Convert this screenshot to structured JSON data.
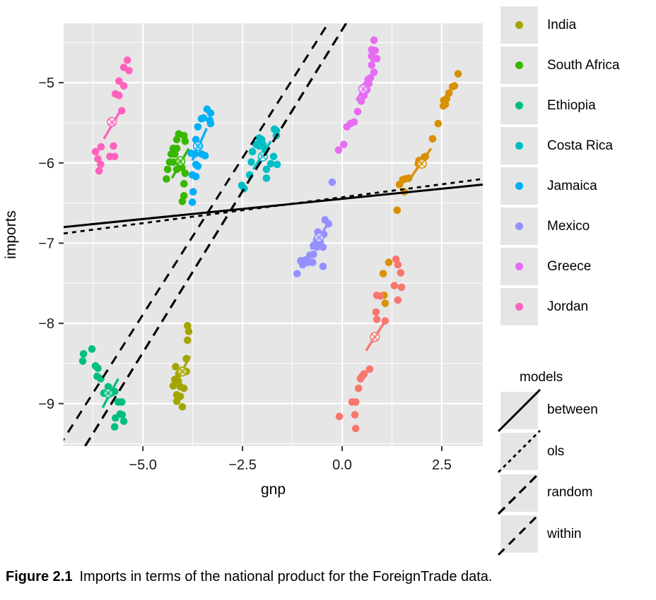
{
  "figure": {
    "caption_label": "Figure 2.1",
    "caption_text": "Imports in terms of the national product for the ForeignTrade data."
  },
  "legend_countries": {
    "items": [
      {
        "label": "India",
        "color": "#A3A500"
      },
      {
        "label": "South Africa",
        "color": "#39B600"
      },
      {
        "label": "Ethiopia",
        "color": "#00BF7D"
      },
      {
        "label": "Costa Rica",
        "color": "#00BFC4"
      },
      {
        "label": "Jamaica",
        "color": "#00B0F6"
      },
      {
        "label": "Mexico",
        "color": "#9590FF"
      },
      {
        "label": "Greece",
        "color": "#E76BF3"
      },
      {
        "label": "Jordan",
        "color": "#FF62BC"
      }
    ]
  },
  "legend_models": {
    "title": "models",
    "items": [
      {
        "label": "between",
        "dash": "none",
        "width": "3"
      },
      {
        "label": "ols",
        "dash": "5,5",
        "width": "2.8"
      },
      {
        "label": "random",
        "dash": "13,8",
        "width": "3.2"
      },
      {
        "label": "within",
        "dash": "12,9",
        "width": "3"
      }
    ]
  },
  "chart_data": {
    "type": "scatter",
    "xlabel": "gnp",
    "ylabel": "imports",
    "xlim": [
      -6.99,
      3.53
    ],
    "ylim": [
      -9.53,
      -4.26
    ],
    "x_ticks": [
      -5.0,
      -2.5,
      0.0,
      2.5
    ],
    "x_tick_labels": [
      "−5.0",
      "−2.5",
      "0.0",
      "2.5"
    ],
    "x_minor": [
      -6.25,
      -3.75,
      -1.25,
      1.25
    ],
    "y_ticks": [
      -5,
      -6,
      -7,
      -8,
      -9
    ],
    "y_tick_labels": [
      "−5",
      "−6",
      "−7",
      "−8",
      "−9"
    ],
    "y_minor": [
      -4.5,
      -5.5,
      -6.5,
      -7.5,
      -8.5,
      -9.5
    ],
    "panel_bg": "#E6E6E6",
    "grid_color": "#FFFFFF",
    "series": [
      {
        "name": "Jordan",
        "color": "#FF62BC",
        "points": [
          [
            -5.39,
            -4.72
          ],
          [
            -5.48,
            -4.81
          ],
          [
            -5.35,
            -4.85
          ],
          [
            -5.6,
            -4.98
          ],
          [
            -5.48,
            -5.04
          ],
          [
            -5.69,
            -5.14
          ],
          [
            -5.6,
            -5.16
          ],
          [
            -5.53,
            -5.35
          ],
          [
            -5.74,
            -5.79
          ],
          [
            -6.05,
            -5.8
          ],
          [
            -6.19,
            -5.86
          ],
          [
            -5.83,
            -5.92
          ],
          [
            -5.71,
            -5.92
          ],
          [
            -6.13,
            -5.95
          ],
          [
            -6.06,
            -6.02
          ],
          [
            -6.1,
            -6.1
          ]
        ],
        "fit_line": [
          [
            -5.98,
            -5.7
          ],
          [
            -5.53,
            -5.32
          ]
        ],
        "center": [
          -5.78,
          -5.49
        ]
      },
      {
        "name": "South Africa",
        "color": "#39B600",
        "points": [
          [
            -4.1,
            -5.64
          ],
          [
            -3.97,
            -5.66
          ],
          [
            -4.15,
            -5.71
          ],
          [
            -3.94,
            -5.73
          ],
          [
            -4.24,
            -5.82
          ],
          [
            -4.15,
            -5.82
          ],
          [
            -4.29,
            -5.89
          ],
          [
            -4.2,
            -5.89
          ],
          [
            -4.33,
            -5.99
          ],
          [
            -4.24,
            -5.99
          ],
          [
            -4.11,
            -5.99
          ],
          [
            -4.38,
            -6.08
          ],
          [
            -4.15,
            -6.08
          ],
          [
            -4.02,
            -6.06
          ],
          [
            -3.94,
            -6.13
          ],
          [
            -4.41,
            -6.2
          ],
          [
            -3.97,
            -6.26
          ],
          [
            -3.97,
            -6.41
          ],
          [
            -4.01,
            -6.48
          ]
        ],
        "fit_line": [
          [
            -4.27,
            -6.19
          ],
          [
            -3.85,
            -5.82
          ]
        ],
        "center": [
          -4.06,
          -5.98
        ]
      },
      {
        "name": "Jamaica",
        "color": "#00B0F6",
        "points": [
          [
            -3.39,
            -5.33
          ],
          [
            -3.3,
            -5.38
          ],
          [
            -3.53,
            -5.45
          ],
          [
            -3.48,
            -5.44
          ],
          [
            -3.32,
            -5.47
          ],
          [
            -3.3,
            -5.51
          ],
          [
            -3.62,
            -5.55
          ],
          [
            -3.67,
            -5.71
          ],
          [
            -3.58,
            -5.79
          ],
          [
            -3.79,
            -5.88
          ],
          [
            -3.7,
            -5.89
          ],
          [
            -3.53,
            -5.89
          ],
          [
            -3.44,
            -5.91
          ],
          [
            -3.67,
            -6.02
          ],
          [
            -3.62,
            -6.04
          ],
          [
            -3.76,
            -6.15
          ],
          [
            -3.67,
            -6.17
          ],
          [
            -3.74,
            -6.36
          ],
          [
            -3.76,
            -6.49
          ]
        ],
        "fit_line": [
          [
            -3.76,
            -5.97
          ],
          [
            -3.4,
            -5.57
          ]
        ],
        "center": [
          -3.62,
          -5.79
        ]
      },
      {
        "name": "Ethiopia",
        "color": "#00BF7D",
        "points": [
          [
            -6.49,
            -8.38
          ],
          [
            -6.28,
            -8.32
          ],
          [
            -6.51,
            -8.47
          ],
          [
            -6.19,
            -8.53
          ],
          [
            -6.13,
            -8.56
          ],
          [
            -6.15,
            -8.66
          ],
          [
            -6.06,
            -8.69
          ],
          [
            -5.87,
            -8.79
          ],
          [
            -5.98,
            -8.87
          ],
          [
            -5.8,
            -8.87
          ],
          [
            -5.71,
            -8.85
          ],
          [
            -5.62,
            -8.98
          ],
          [
            -5.53,
            -8.98
          ],
          [
            -5.57,
            -9.13
          ],
          [
            -5.52,
            -9.14
          ],
          [
            -5.69,
            -9.18
          ],
          [
            -5.48,
            -9.22
          ],
          [
            -5.71,
            -9.29
          ]
        ],
        "fit_line": [
          [
            -6.01,
            -9.05
          ],
          [
            -5.62,
            -8.69
          ]
        ],
        "center": [
          -5.87,
          -8.87
        ]
      },
      {
        "name": "India",
        "color": "#A3A500",
        "points": [
          [
            -3.88,
            -8.03
          ],
          [
            -3.85,
            -8.1
          ],
          [
            -3.88,
            -8.21
          ],
          [
            -3.91,
            -8.44
          ],
          [
            -4.18,
            -8.54
          ],
          [
            -4.01,
            -8.59
          ],
          [
            -3.91,
            -8.6
          ],
          [
            -4.1,
            -8.63
          ],
          [
            -4.2,
            -8.7
          ],
          [
            -4.11,
            -8.72
          ],
          [
            -4.24,
            -8.78
          ],
          [
            -4.06,
            -8.79
          ],
          [
            -3.97,
            -8.81
          ],
          [
            -4.15,
            -8.89
          ],
          [
            -4.06,
            -8.91
          ],
          [
            -4.15,
            -8.97
          ],
          [
            -4.01,
            -9.04
          ]
        ],
        "fit_line": [
          [
            -4.18,
            -8.75
          ],
          [
            -3.82,
            -8.41
          ]
        ],
        "center": [
          -4.01,
          -8.6
        ]
      },
      {
        "name": "Costa Rica",
        "color": "#00BFC4",
        "points": [
          [
            -1.7,
            -5.58
          ],
          [
            -1.65,
            -5.6
          ],
          [
            -1.65,
            -5.66
          ],
          [
            -2.08,
            -5.69
          ],
          [
            -2.02,
            -5.71
          ],
          [
            -2.16,
            -5.77
          ],
          [
            -2.08,
            -5.79
          ],
          [
            -1.99,
            -5.77
          ],
          [
            -2.25,
            -5.86
          ],
          [
            -1.93,
            -5.84
          ],
          [
            -1.72,
            -5.92
          ],
          [
            -2.28,
            -5.99
          ],
          [
            -1.79,
            -6.01
          ],
          [
            -1.63,
            -6.02
          ],
          [
            -1.9,
            -6.08
          ],
          [
            -2.32,
            -6.15
          ],
          [
            -1.9,
            -6.19
          ],
          [
            -2.52,
            -6.28
          ],
          [
            -2.46,
            -6.32
          ]
        ],
        "fit_line": [
          [
            -2.23,
            -6.08
          ],
          [
            -1.79,
            -5.73
          ]
        ],
        "center": [
          -1.99,
          -5.92
        ]
      },
      {
        "name": "Mexico",
        "color": "#9590FF",
        "points": [
          [
            -0.25,
            -6.24
          ],
          [
            -0.43,
            -6.71
          ],
          [
            -0.34,
            -6.76
          ],
          [
            -0.61,
            -6.86
          ],
          [
            -0.55,
            -6.9
          ],
          [
            -0.46,
            -6.89
          ],
          [
            -0.64,
            -6.96
          ],
          [
            -0.55,
            -6.98
          ],
          [
            -0.72,
            -7.03
          ],
          [
            -0.64,
            -7.05
          ],
          [
            -0.48,
            -7.05
          ],
          [
            -0.81,
            -7.15
          ],
          [
            -0.72,
            -7.14
          ],
          [
            -0.92,
            -7.21
          ],
          [
            -0.86,
            -7.24
          ],
          [
            -1.04,
            -7.22
          ],
          [
            -0.99,
            -7.27
          ],
          [
            -0.74,
            -7.24
          ],
          [
            -0.48,
            -7.29
          ],
          [
            -1.13,
            -7.38
          ]
        ],
        "fit_line": [
          [
            -0.78,
            -7.08
          ],
          [
            -0.38,
            -6.78
          ]
        ],
        "center": [
          -0.58,
          -6.93
        ]
      },
      {
        "name": "Greece",
        "color": "#E76BF3",
        "points": [
          [
            0.8,
            -4.47
          ],
          [
            0.83,
            -4.6
          ],
          [
            0.74,
            -4.59
          ],
          [
            0.74,
            -4.67
          ],
          [
            0.8,
            -4.7
          ],
          [
            0.87,
            -4.7
          ],
          [
            0.74,
            -4.78
          ],
          [
            0.8,
            -4.87
          ],
          [
            0.71,
            -4.94
          ],
          [
            0.65,
            -4.96
          ],
          [
            0.67,
            -5.01
          ],
          [
            0.6,
            -5.03
          ],
          [
            0.62,
            -5.09
          ],
          [
            0.55,
            -5.16
          ],
          [
            0.48,
            -5.23
          ],
          [
            0.39,
            -5.36
          ],
          [
            0.3,
            -5.49
          ],
          [
            0.21,
            -5.51
          ],
          [
            0.12,
            -5.55
          ],
          [
            0.04,
            -5.77
          ],
          [
            -0.09,
            -5.84
          ]
        ],
        "fit_line": [
          [
            0.36,
            -5.22
          ],
          [
            0.68,
            -4.95
          ]
        ],
        "center": [
          0.53,
          -5.08
        ]
      },
      {
        "name": "",
        "color": "#D89000",
        "points": [
          [
            2.91,
            -4.89
          ],
          [
            2.77,
            -5.05
          ],
          [
            2.82,
            -5.04
          ],
          [
            2.68,
            -5.13
          ],
          [
            2.55,
            -5.22
          ],
          [
            2.62,
            -5.2
          ],
          [
            2.54,
            -5.29
          ],
          [
            2.59,
            -5.27
          ],
          [
            2.41,
            -5.51
          ],
          [
            2.27,
            -5.7
          ],
          [
            2.09,
            -5.92
          ],
          [
            2.06,
            -5.93
          ],
          [
            1.93,
            -5.97
          ],
          [
            1.91,
            -6.01
          ],
          [
            1.67,
            -6.19
          ],
          [
            1.58,
            -6.2
          ],
          [
            1.52,
            -6.21
          ],
          [
            1.56,
            -6.36
          ],
          [
            1.44,
            -6.27
          ],
          [
            1.38,
            -6.59
          ],
          [
            1.17,
            -7.24
          ],
          [
            1.03,
            -7.38
          ],
          [
            1.05,
            -7.65
          ],
          [
            1.08,
            -7.75
          ]
        ],
        "fit_line": [
          [
            1.7,
            -6.2
          ],
          [
            2.23,
            -5.82
          ]
        ],
        "center": [
          2.0,
          -6.01
        ]
      },
      {
        "name": "",
        "color": "#F8766D",
        "points": [
          [
            1.35,
            -7.2
          ],
          [
            1.4,
            -7.27
          ],
          [
            1.47,
            -7.37
          ],
          [
            1.31,
            -7.53
          ],
          [
            1.49,
            -7.55
          ],
          [
            0.87,
            -7.65
          ],
          [
            0.96,
            -7.66
          ],
          [
            1.4,
            -7.71
          ],
          [
            0.85,
            -7.86
          ],
          [
            0.87,
            -7.95
          ],
          [
            1.08,
            -7.97
          ],
          [
            0.69,
            -8.57
          ],
          [
            0.55,
            -8.63
          ],
          [
            0.5,
            -8.66
          ],
          [
            0.46,
            -8.69
          ],
          [
            0.41,
            -8.81
          ],
          [
            0.25,
            -8.98
          ],
          [
            0.34,
            -8.98
          ],
          [
            0.32,
            -9.14
          ],
          [
            -0.07,
            -9.16
          ],
          [
            0.34,
            -9.31
          ]
        ],
        "fit_line": [
          [
            0.6,
            -8.34
          ],
          [
            1.08,
            -7.97
          ]
        ],
        "center": [
          0.82,
          -8.17
        ]
      }
    ],
    "model_lines": [
      {
        "name": "between",
        "dash": "none",
        "width": 3,
        "x1": -6.99,
        "y1": -6.8,
        "x2": 3.53,
        "y2": -6.27
      },
      {
        "name": "ols",
        "dash": "6,6",
        "width": 2.8,
        "x1": -6.99,
        "y1": -6.88,
        "x2": 3.53,
        "y2": -6.2
      },
      {
        "name": "random",
        "dash": "14,9",
        "width": 3.2,
        "x1": -6.45,
        "y1": -9.53,
        "x2": 0.1,
        "y2": -4.26
      },
      {
        "name": "within",
        "dash": "13,10",
        "width": 3,
        "x1": -7.1,
        "y1": -9.53,
        "x2": -0.35,
        "y2": -4.26
      }
    ]
  }
}
